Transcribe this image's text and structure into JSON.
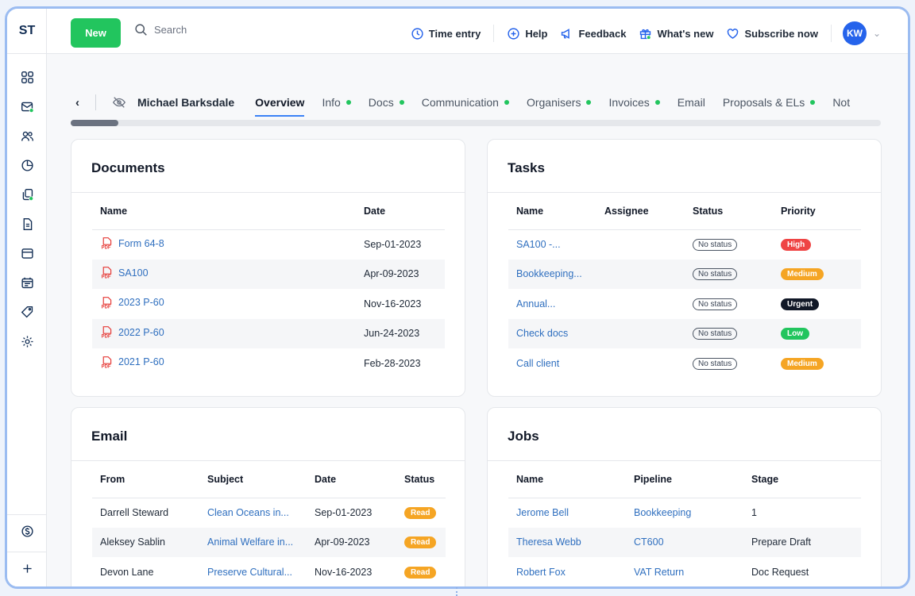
{
  "app": {
    "logo": "ST"
  },
  "topbar": {
    "new_label": "New",
    "search_placeholder": "Search",
    "actions": [
      {
        "label": "Time entry",
        "icon": "clock-icon"
      },
      {
        "label": "Help",
        "icon": "plus-circle-icon"
      },
      {
        "label": "Feedback",
        "icon": "megaphone-icon"
      },
      {
        "label": "What's new",
        "icon": "gift-icon"
      },
      {
        "label": "Subscribe now",
        "icon": "heart-icon"
      }
    ],
    "avatar_initials": "KW"
  },
  "tabs": {
    "client_name": "Michael Barksdale",
    "items": [
      {
        "label": "Overview",
        "active": true,
        "dot": false
      },
      {
        "label": "Info",
        "dot": true
      },
      {
        "label": "Docs",
        "dot": true
      },
      {
        "label": "Communication",
        "dot": true
      },
      {
        "label": "Organisers",
        "dot": true
      },
      {
        "label": "Invoices",
        "dot": true
      },
      {
        "label": "Email",
        "dot": false
      },
      {
        "label": "Proposals & ELs",
        "dot": true
      },
      {
        "label": "Not",
        "dot": false
      }
    ]
  },
  "documents": {
    "title": "Documents",
    "columns": [
      "Name",
      "Date"
    ],
    "rows": [
      {
        "name": "Form 64-8",
        "date": "Sep-01-2023"
      },
      {
        "name": "SA100",
        "date": "Apr-09-2023"
      },
      {
        "name": "2023 P-60",
        "date": "Nov-16-2023"
      },
      {
        "name": "2022 P-60",
        "date": "Jun-24-2023"
      },
      {
        "name": "2021 P-60",
        "date": "Feb-28-2023"
      }
    ]
  },
  "tasks": {
    "title": "Tasks",
    "columns": [
      "Name",
      "Assignee",
      "Status",
      "Priority"
    ],
    "rows": [
      {
        "name": "SA100 -...",
        "assignee": "",
        "status": "No status",
        "priority": "High",
        "priority_color": "#ef4444"
      },
      {
        "name": "Bookkeeping...",
        "assignee": "",
        "status": "No status",
        "priority": "Medium",
        "priority_color": "#f5a524"
      },
      {
        "name": "Annual...",
        "assignee": "",
        "status": "No status",
        "priority": "Urgent",
        "priority_color": "#111827"
      },
      {
        "name": "Check docs",
        "assignee": "",
        "status": "No status",
        "priority": "Low",
        "priority_color": "#22c55e"
      },
      {
        "name": "Call client",
        "assignee": "",
        "status": "No status",
        "priority": "Medium",
        "priority_color": "#f5a524"
      }
    ]
  },
  "email": {
    "title": "Email",
    "columns": [
      "From",
      "Subject",
      "Date",
      "Status"
    ],
    "rows": [
      {
        "from": "Darrell Steward",
        "subject": "Clean Oceans in...",
        "date": "Sep-01-2023",
        "status": "Read"
      },
      {
        "from": "Aleksey Sablin",
        "subject": "Animal Welfare in...",
        "date": "Apr-09-2023",
        "status": "Read"
      },
      {
        "from": "Devon Lane",
        "subject": "Preserve Cultural...",
        "date": "Nov-16-2023",
        "status": "Read"
      }
    ],
    "status_color": "#f5a524"
  },
  "jobs": {
    "title": "Jobs",
    "columns": [
      "Name",
      "Pipeline",
      "Stage"
    ],
    "rows": [
      {
        "name": "Jerome Bell",
        "pipeline": "Bookkeeping",
        "stage": "1"
      },
      {
        "name": "Theresa Webb",
        "pipeline": "CT600",
        "stage": "Prepare Draft"
      },
      {
        "name": "Robert Fox",
        "pipeline": "VAT Return",
        "stage": "Doc Request"
      }
    ]
  },
  "colors": {
    "accent": "#3b82f6",
    "brand_green": "#22c55e",
    "link": "#2f6fbf"
  }
}
